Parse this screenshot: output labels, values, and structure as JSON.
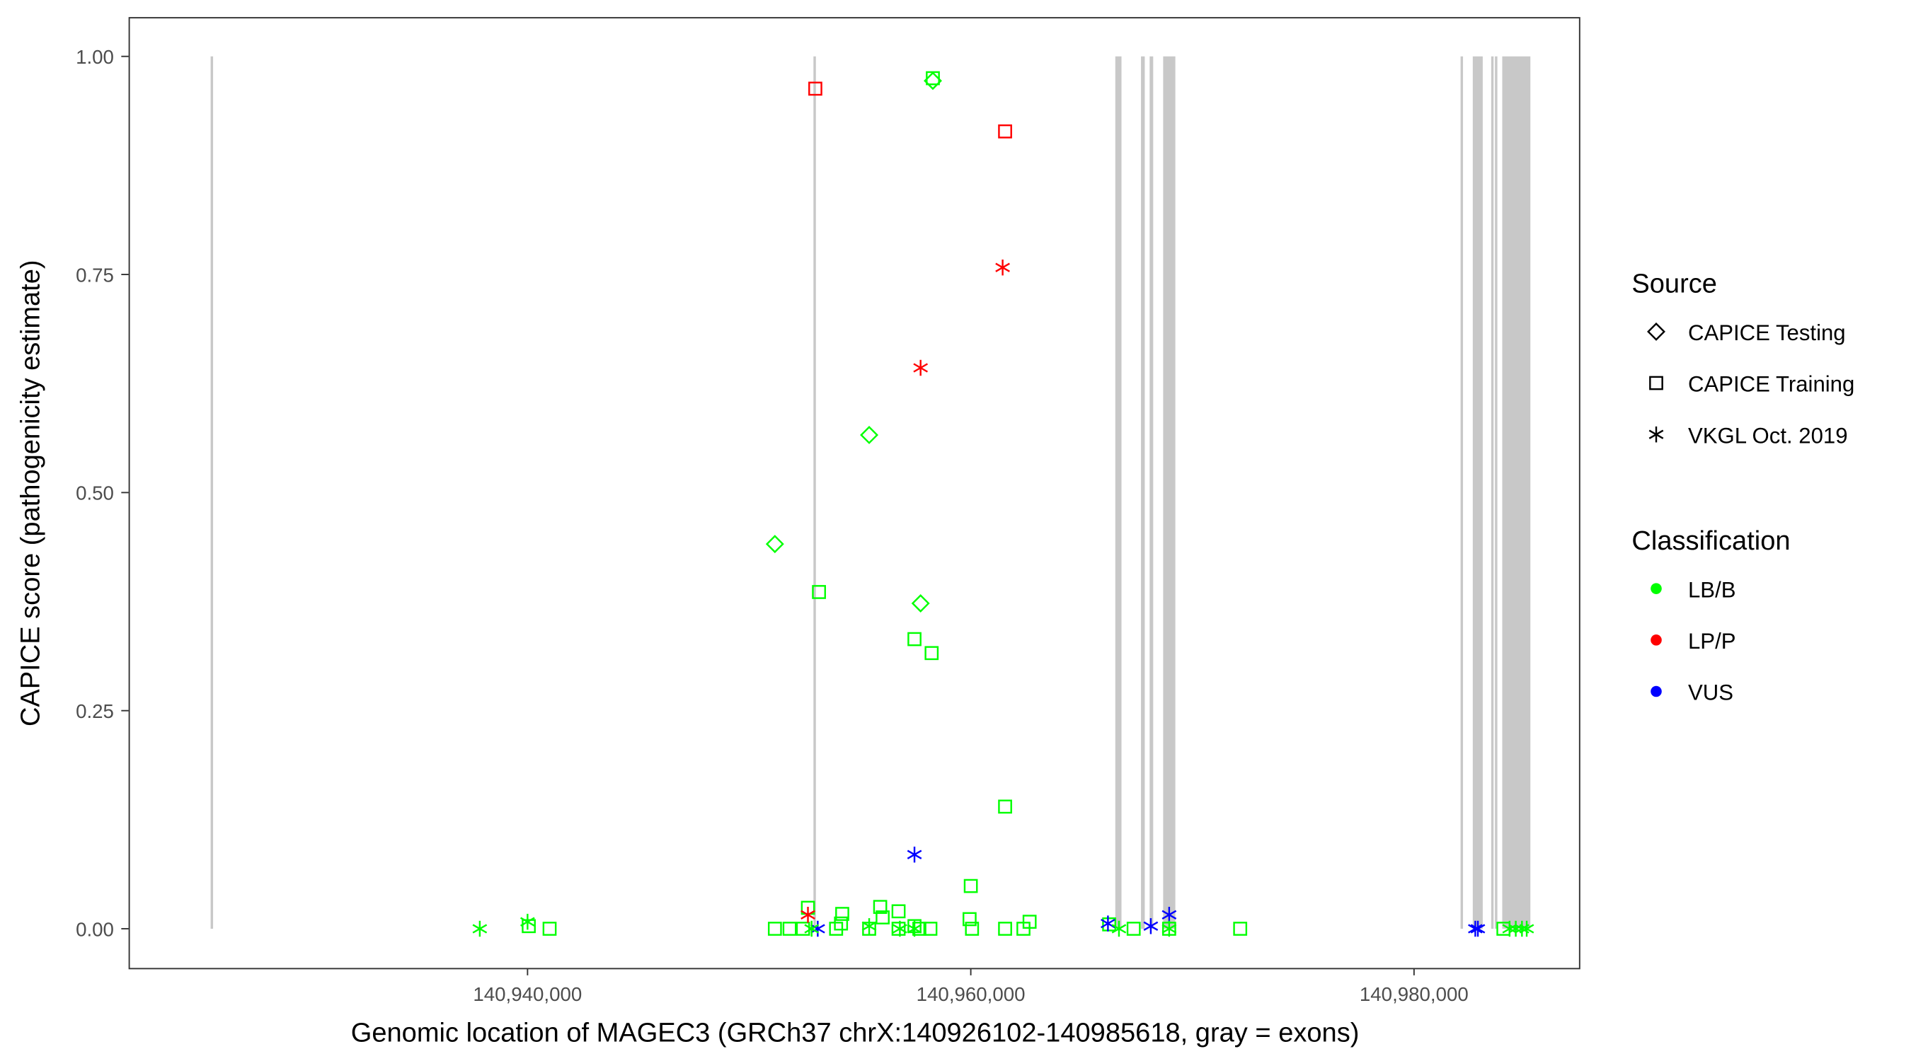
{
  "chart_data": {
    "type": "scatter",
    "xlabel": "Genomic location of MAGEC3 (GRCh37 chrX:140926102-140985618, gray = exons)",
    "ylabel": "CAPICE score (pathogenicity estimate)",
    "xlim": [
      140922000,
      140987500
    ],
    "ylim": [
      -0.045,
      1.045
    ],
    "x_ticks": [
      140940000,
      140960000,
      140980000
    ],
    "x_tick_labels": [
      "140,940,000",
      "140,960,000",
      "140,980,000"
    ],
    "y_ticks": [
      0,
      0.25,
      0.5,
      0.75,
      1.0
    ],
    "y_tick_labels": [
      "0.00",
      "0.25",
      "0.50",
      "0.75",
      "1.00"
    ],
    "grid": false,
    "exons": [
      [
        140925700,
        140925800
      ],
      [
        140952900,
        140953000
      ],
      [
        140966520,
        140966800
      ],
      [
        140967680,
        140967850
      ],
      [
        140968070,
        140968230
      ],
      [
        140968680,
        140969230
      ],
      [
        140982100,
        140982210
      ],
      [
        140982650,
        140983100
      ],
      [
        140983480,
        140983590
      ],
      [
        140983650,
        140983760
      ],
      [
        140983980,
        140985250
      ]
    ],
    "legend": {
      "position": "right",
      "source_title": "Source",
      "sources": [
        {
          "key": "testing",
          "label": "CAPICE Testing",
          "shape": "diamond"
        },
        {
          "key": "training",
          "label": "CAPICE Training",
          "shape": "square"
        },
        {
          "key": "vkgl",
          "label": "VKGL Oct. 2019",
          "shape": "asterisk"
        }
      ],
      "class_title": "Classification",
      "classes": [
        {
          "key": "LB/B",
          "label": "LB/B",
          "color": "#00FF00"
        },
        {
          "key": "LP/P",
          "label": "LP/P",
          "color": "#FF0000"
        },
        {
          "key": "VUS",
          "label": "VUS",
          "color": "#0000FF"
        }
      ]
    },
    "points": [
      {
        "x": 140958288,
        "y": 0.972,
        "s": "testing",
        "c": "LB/B"
      },
      {
        "x": 140955415,
        "y": 0.566,
        "s": "testing",
        "c": "LB/B"
      },
      {
        "x": 140951161,
        "y": 0.441,
        "s": "testing",
        "c": "LB/B"
      },
      {
        "x": 140957735,
        "y": 0.373,
        "s": "testing",
        "c": "LB/B"
      },
      {
        "x": 140952984,
        "y": 0.963,
        "s": "training",
        "c": "LP/P"
      },
      {
        "x": 140961548,
        "y": 0.914,
        "s": "training",
        "c": "LP/P"
      },
      {
        "x": 140958288,
        "y": 0.975,
        "s": "training",
        "c": "LB/B"
      },
      {
        "x": 140953150,
        "y": 0.386,
        "s": "training",
        "c": "LB/B"
      },
      {
        "x": 140957459,
        "y": 0.332,
        "s": "training",
        "c": "LB/B"
      },
      {
        "x": 140958233,
        "y": 0.316,
        "s": "training",
        "c": "LB/B"
      },
      {
        "x": 140961548,
        "y": 0.14,
        "s": "training",
        "c": "LB/B"
      },
      {
        "x": 140960000,
        "y": 0.049,
        "s": "training",
        "c": "LB/B"
      },
      {
        "x": 140952652,
        "y": 0.024,
        "s": "training",
        "c": "LB/B"
      },
      {
        "x": 140954199,
        "y": 0.017,
        "s": "training",
        "c": "LB/B"
      },
      {
        "x": 140955912,
        "y": 0.025,
        "s": "training",
        "c": "LB/B"
      },
      {
        "x": 140956741,
        "y": 0.02,
        "s": "training",
        "c": "LB/B"
      },
      {
        "x": 140956023,
        "y": 0.013,
        "s": "training",
        "c": "LB/B"
      },
      {
        "x": 140954144,
        "y": 0.006,
        "s": "training",
        "c": "LB/B"
      },
      {
        "x": 140959945,
        "y": 0.011,
        "s": "training",
        "c": "LB/B"
      },
      {
        "x": 140962653,
        "y": 0.008,
        "s": "training",
        "c": "LB/B"
      },
      {
        "x": 140962376,
        "y": 0.0,
        "s": "training",
        "c": "LB/B"
      },
      {
        "x": 140961548,
        "y": 0.0,
        "s": "training",
        "c": "LB/B"
      },
      {
        "x": 140960055,
        "y": 0.0,
        "s": "training",
        "c": "LB/B"
      },
      {
        "x": 140958177,
        "y": 0.0,
        "s": "training",
        "c": "LB/B"
      },
      {
        "x": 140957680,
        "y": 0.0,
        "s": "training",
        "c": "LB/B"
      },
      {
        "x": 140957459,
        "y": 0.003,
        "s": "training",
        "c": "LB/B"
      },
      {
        "x": 140956741,
        "y": 0.0,
        "s": "training",
        "c": "LB/B"
      },
      {
        "x": 140955415,
        "y": 0.0,
        "s": "training",
        "c": "LB/B"
      },
      {
        "x": 140953923,
        "y": 0.0,
        "s": "training",
        "c": "LB/B"
      },
      {
        "x": 140952431,
        "y": 0.0,
        "s": "training",
        "c": "LB/B"
      },
      {
        "x": 140951824,
        "y": 0.0,
        "s": "training",
        "c": "LB/B"
      },
      {
        "x": 140951161,
        "y": 0.0,
        "s": "training",
        "c": "LB/B"
      },
      {
        "x": 140940055,
        "y": 0.003,
        "s": "training",
        "c": "LB/B"
      },
      {
        "x": 140940995,
        "y": 0.0,
        "s": "training",
        "c": "LB/B"
      },
      {
        "x": 140966244,
        "y": 0.005,
        "s": "training",
        "c": "LB/B"
      },
      {
        "x": 140967349,
        "y": 0.0,
        "s": "training",
        "c": "LB/B"
      },
      {
        "x": 140968951,
        "y": 0.0,
        "s": "training",
        "c": "LB/B"
      },
      {
        "x": 140972156,
        "y": 0.0,
        "s": "training",
        "c": "LB/B"
      },
      {
        "x": 140984034,
        "y": 0.0,
        "s": "training",
        "c": "LB/B"
      },
      {
        "x": 140961437,
        "y": 0.758,
        "s": "vkgl",
        "c": "LP/P"
      },
      {
        "x": 140957735,
        "y": 0.643,
        "s": "vkgl",
        "c": "LP/P"
      },
      {
        "x": 140952652,
        "y": 0.016,
        "s": "vkgl",
        "c": "LP/P"
      },
      {
        "x": 140957459,
        "y": 0.085,
        "s": "vkgl",
        "c": "VUS"
      },
      {
        "x": 140953094,
        "y": 0.0,
        "s": "vkgl",
        "c": "VUS"
      },
      {
        "x": 140966189,
        "y": 0.006,
        "s": "vkgl",
        "c": "VUS"
      },
      {
        "x": 140968122,
        "y": 0.003,
        "s": "vkgl",
        "c": "VUS"
      },
      {
        "x": 140968951,
        "y": 0.016,
        "s": "vkgl",
        "c": "VUS"
      },
      {
        "x": 140982764,
        "y": 0.0,
        "s": "vkgl",
        "c": "VUS"
      },
      {
        "x": 140982880,
        "y": 0.0,
        "s": "vkgl",
        "c": "VUS"
      },
      {
        "x": 140937845,
        "y": 0.0,
        "s": "vkgl",
        "c": "LB/B"
      },
      {
        "x": 140940000,
        "y": 0.008,
        "s": "vkgl",
        "c": "LB/B"
      },
      {
        "x": 140952818,
        "y": 0.0,
        "s": "vkgl",
        "c": "LB/B"
      },
      {
        "x": 140955415,
        "y": 0.003,
        "s": "vkgl",
        "c": "LB/B"
      },
      {
        "x": 140956800,
        "y": 0.0,
        "s": "vkgl",
        "c": "LB/B"
      },
      {
        "x": 140957459,
        "y": 0.0,
        "s": "vkgl",
        "c": "LB/B"
      },
      {
        "x": 140966686,
        "y": 0.0,
        "s": "vkgl",
        "c": "LB/B"
      },
      {
        "x": 140968951,
        "y": 0.0,
        "s": "vkgl",
        "c": "LB/B"
      },
      {
        "x": 140984311,
        "y": 0.0,
        "s": "vkgl",
        "c": "LB/B"
      },
      {
        "x": 140984590,
        "y": 0.0,
        "s": "vkgl",
        "c": "LB/B"
      },
      {
        "x": 140984870,
        "y": 0.0,
        "s": "vkgl",
        "c": "LB/B"
      },
      {
        "x": 140985084,
        "y": 0.0,
        "s": "vkgl",
        "c": "LB/B"
      }
    ]
  }
}
